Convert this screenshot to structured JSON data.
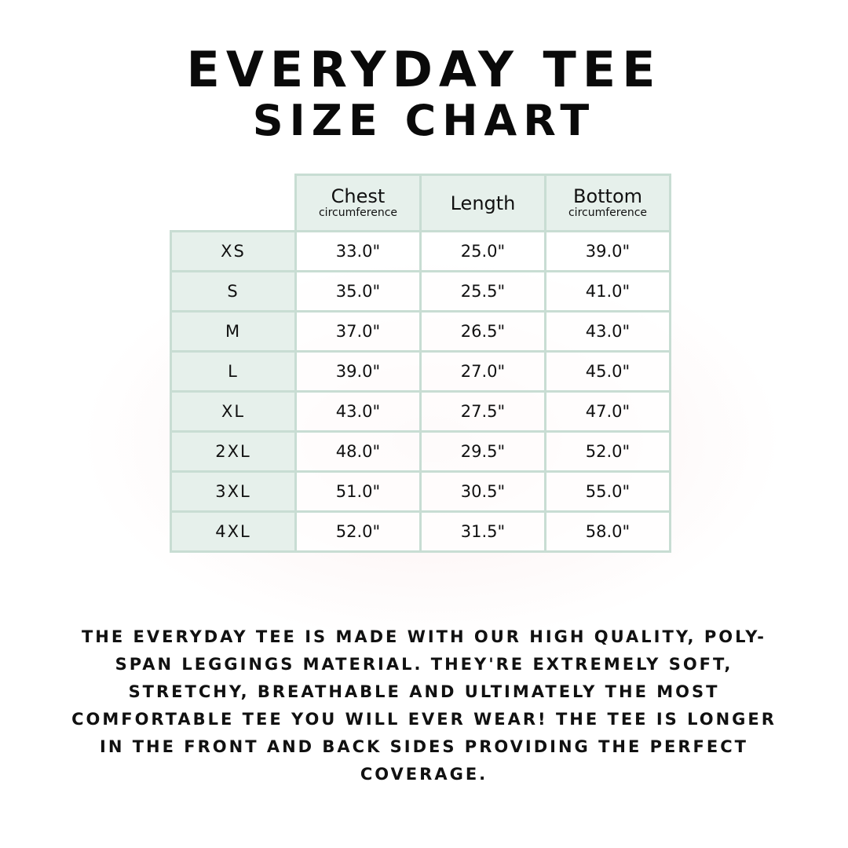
{
  "title": {
    "line1": "EVERYDAY TEE",
    "line2": "SIZE CHART"
  },
  "table": {
    "headers": [
      {
        "label": "Chest",
        "sub": "circumference"
      },
      {
        "label": "Length",
        "sub": ""
      },
      {
        "label": "Bottom",
        "sub": "circumference"
      }
    ],
    "rows": [
      {
        "size": "XS",
        "chest": "33.0\"",
        "length": "25.0\"",
        "bottom": "39.0\""
      },
      {
        "size": "S",
        "chest": "35.0\"",
        "length": "25.5\"",
        "bottom": "41.0\""
      },
      {
        "size": "M",
        "chest": "37.0\"",
        "length": "26.5\"",
        "bottom": "43.0\""
      },
      {
        "size": "L",
        "chest": "39.0\"",
        "length": "27.0\"",
        "bottom": "45.0\""
      },
      {
        "size": "XL",
        "chest": "43.0\"",
        "length": "27.5\"",
        "bottom": "47.0\""
      },
      {
        "size": "2XL",
        "chest": "48.0\"",
        "length": "29.5\"",
        "bottom": "52.0\""
      },
      {
        "size": "3XL",
        "chest": "51.0\"",
        "length": "30.5\"",
        "bottom": "55.0\""
      },
      {
        "size": "4XL",
        "chest": "52.0\"",
        "length": "31.5\"",
        "bottom": "58.0\""
      }
    ]
  },
  "description": "The Everyday Tee is made with our high quality, poly-span leggings material. They're extremely soft, stretchy, breathable and ultimately the most comfortable tee you will ever wear! The tee is longer in the front and back sides providing the perfect coverage.",
  "colors": {
    "border": "#c8ddd3",
    "header_fill": "#e6f0eb",
    "text": "#111111"
  }
}
